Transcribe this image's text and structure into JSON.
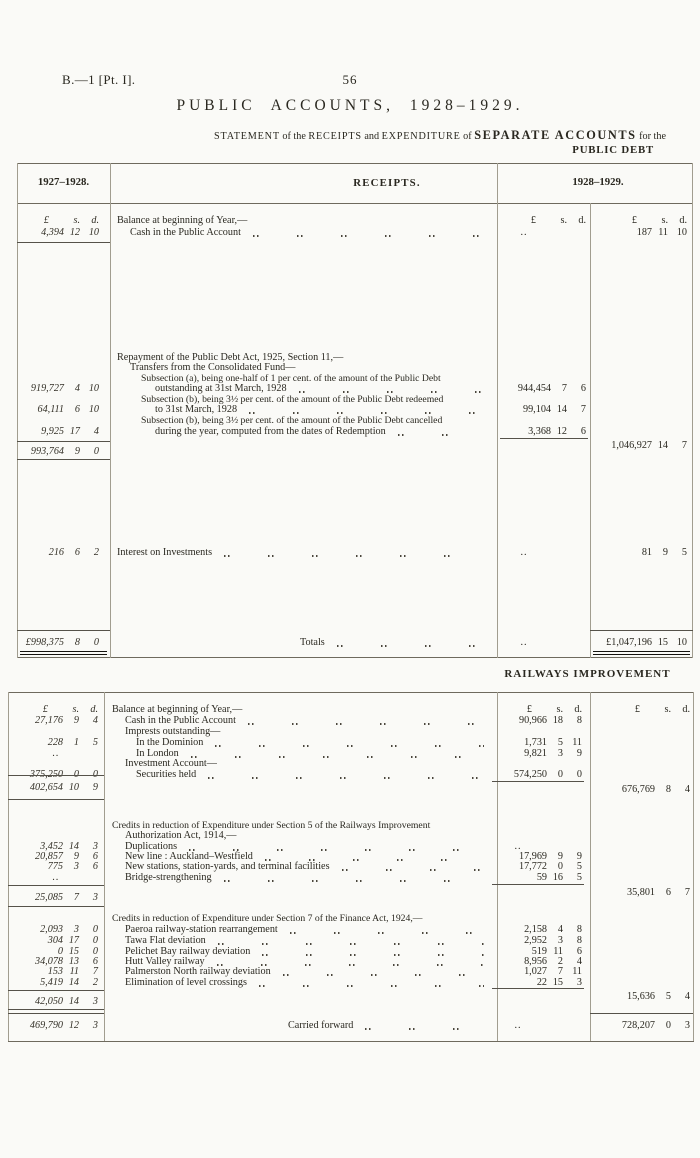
{
  "theme": {
    "paper": "#fafaf7",
    "ink": "#2a2820",
    "rule_dark": "#55524a",
    "rule_light": "#a19d8f"
  },
  "header": {
    "doc_ref": "B.—1 [Pt. I].",
    "page_number": "56",
    "title": "PUBLIC ACCOUNTS, 1928–1929.",
    "statement": {
      "w1": "STATEMENT",
      "w2": " of the ",
      "w3": "RECEIPTS",
      "w4": " and ",
      "w5": "EXPENDITURE",
      "w6": " of ",
      "w7": "SEPARATE ACCOUNTS",
      "w8": " for the"
    },
    "statement_line2": "PUBLIC DEBT"
  },
  "currency_header": [
    "£",
    "s.",
    "d."
  ],
  "public_debt": {
    "col_left_year": "1927–1928.",
    "col_receipts": "RECEIPTS.",
    "col_right_year": "1928–1929.",
    "rows": [
      {
        "desc": "Balance at beginning of Year,—"
      },
      {
        "desc": "Cash in the Public Account",
        "prev": [
          "4,394",
          "12",
          "10"
        ],
        "mid": "..",
        "right": [
          "187",
          "11",
          "10"
        ]
      },
      {
        "desc": "Repayment of the Public Debt Act, 1925, Section 11,—"
      },
      {
        "desc": "Transfers from the Consolidated Fund—"
      },
      {
        "desc": "Subsection (a), being one-half of 1 per cent. of the amount of the Public Debt"
      },
      {
        "desc": "outstanding at 31st March, 1928",
        "prev": [
          "919,727",
          "4",
          "10"
        ],
        "mid": [
          "944,454",
          "7",
          "6"
        ]
      },
      {
        "desc": "Subsection (b), being 3½ per cent. of the amount of the Public Debt redeemed"
      },
      {
        "desc": "to 31st March, 1928",
        "prev": [
          "64,111",
          "6",
          "10"
        ],
        "mid": [
          "99,104",
          "14",
          "7"
        ]
      },
      {
        "desc": "Subsection (b), being 3½ per cent. of the amount of the Public Debt cancelled"
      },
      {
        "desc": "during the year, computed from the dates of Redemption",
        "prev": [
          "9,925",
          "17",
          "4"
        ],
        "mid": [
          "3,368",
          "12",
          "6"
        ]
      },
      {
        "prev": [
          "993,764",
          "9",
          "0"
        ],
        "right": [
          "1,046,927",
          "14",
          "7"
        ]
      },
      {
        "desc": "Interest on Investments",
        "prev": [
          "216",
          "6",
          "2"
        ],
        "mid": "..",
        "right": [
          "81",
          "9",
          "5"
        ]
      },
      {
        "desc": "Totals",
        "prev": [
          "£998,375",
          "8",
          "0"
        ],
        "mid": "..",
        "right": [
          "£1,047,196",
          "15",
          "10"
        ]
      }
    ]
  },
  "railways": {
    "heading": "RAILWAYS IMPROVEMENT",
    "rows": [
      {
        "desc": "Balance at beginning of Year,—"
      },
      {
        "desc": "Cash in the Public Account",
        "prev": [
          "27,176",
          "9",
          "4"
        ],
        "mid": [
          "90,966",
          "18",
          "8"
        ]
      },
      {
        "desc": "Imprests outstanding—"
      },
      {
        "desc": "In the Dominion",
        "prev": [
          "228",
          "1",
          "5"
        ],
        "mid": [
          "1,731",
          "5",
          "11"
        ]
      },
      {
        "desc": "In London",
        "prev": "..",
        "mid": [
          "9,821",
          "3",
          "9"
        ]
      },
      {
        "desc": "Investment Account—"
      },
      {
        "desc": "Securities held",
        "prev": [
          "375,250",
          "0",
          "0"
        ],
        "mid": [
          "574,250",
          "0",
          "0"
        ]
      },
      {
        "prev": [
          "402,654",
          "10",
          "9"
        ],
        "right": [
          "676,769",
          "8",
          "4"
        ]
      },
      {
        "desc": "Credits in reduction of Expenditure under Section 5 of the Railways Improvement"
      },
      {
        "desc": "Authorization Act, 1914,—"
      },
      {
        "desc": "Duplications",
        "prev": [
          "3,452",
          "14",
          "3"
        ],
        "mid": ".."
      },
      {
        "desc": "New line : Auckland–Westfield",
        "prev": [
          "20,857",
          "9",
          "6"
        ],
        "mid": [
          "17,969",
          "9",
          "9"
        ]
      },
      {
        "desc": "New stations, station-yards, and terminal facilities",
        "prev": [
          "775",
          "3",
          "6"
        ],
        "mid": [
          "17,772",
          "0",
          "5"
        ]
      },
      {
        "desc": "Bridge-strengthening",
        "prev": "..",
        "mid": [
          "59",
          "16",
          "5"
        ]
      },
      {
        "prev": [
          "25,085",
          "7",
          "3"
        ],
        "right": [
          "35,801",
          "6",
          "7"
        ]
      },
      {
        "desc": "Credits in reduction of Expenditure under Section 7 of the Finance Act, 1924,—"
      },
      {
        "desc": "Paeroa railway-station rearrangement",
        "prev": [
          "2,093",
          "3",
          "0"
        ],
        "mid": [
          "2,158",
          "4",
          "8"
        ]
      },
      {
        "desc": "Tawa Flat deviation",
        "prev": [
          "304",
          "17",
          "0"
        ],
        "mid": [
          "2,952",
          "3",
          "8"
        ]
      },
      {
        "desc": "Pelichet Bay railway deviation",
        "prev": [
          "0",
          "15",
          "0"
        ],
        "mid": [
          "519",
          "11",
          "6"
        ]
      },
      {
        "desc": "Hutt Valley railway",
        "prev": [
          "34,078",
          "13",
          "6"
        ],
        "mid": [
          "8,956",
          "2",
          "4"
        ]
      },
      {
        "desc": "Palmerston North railway deviation",
        "prev": [
          "153",
          "11",
          "7"
        ],
        "mid": [
          "1,027",
          "7",
          "11"
        ]
      },
      {
        "desc": "Elimination of level crossings",
        "prev": [
          "5,419",
          "14",
          "2"
        ],
        "mid": [
          "22",
          "15",
          "3"
        ]
      },
      {
        "prev": [
          "42,050",
          "14",
          "3"
        ],
        "right": [
          "15,636",
          "5",
          "4"
        ]
      },
      {
        "desc": "Carried forward",
        "prev": [
          "469,790",
          "12",
          "3"
        ],
        "mid": "..",
        "right": [
          "728,207",
          "0",
          "3"
        ]
      }
    ]
  }
}
